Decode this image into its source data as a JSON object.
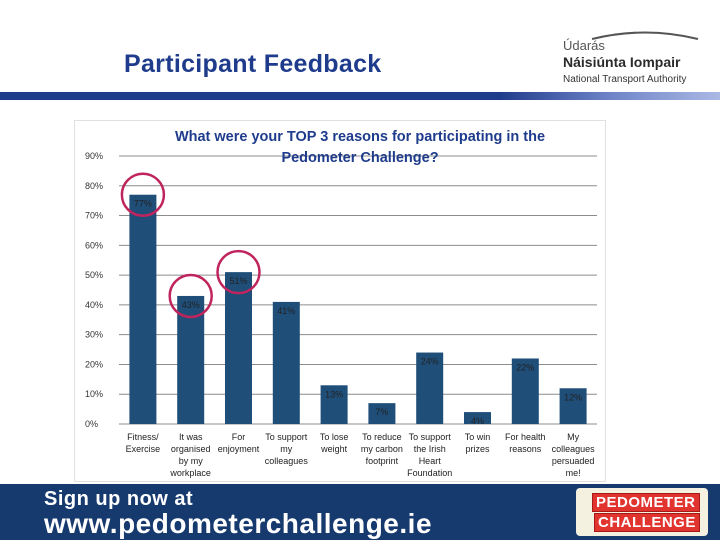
{
  "slide_title": "Participant Feedback",
  "logo": {
    "line1": "Údarás",
    "line2": "Náisiúnta Iompair",
    "line3": "National Transport Authority",
    "icon": "bridge-arc-icon"
  },
  "banner": {
    "line1": "Sign up now at",
    "line2": "www.pedometerchallenge.ie",
    "logo_line1": "PEDOMETER",
    "logo_line2": "CHALLENGE"
  },
  "colors": {
    "bar": "#1f4e79",
    "highlight_circle": "#c0245c",
    "title": "#1f3c8c",
    "banner": "#16396e"
  },
  "chart_data": {
    "type": "bar",
    "title": "What were your TOP 3 reasons for participating in the Pedometer Challenge?",
    "categories": [
      [
        "Fitness/",
        "Exercise"
      ],
      [
        "It was",
        "organised",
        "by my",
        "workplace"
      ],
      [
        "For",
        "enjoyment"
      ],
      [
        "To support",
        "my",
        "colleagues"
      ],
      [
        "To lose",
        "weight"
      ],
      [
        "To reduce",
        "my carbon",
        "footprint"
      ],
      [
        "To support",
        "the Irish",
        "Heart",
        "Foundation"
      ],
      [
        "To win",
        "prizes"
      ],
      [
        "For health",
        "reasons"
      ],
      [
        "My",
        "colleagues",
        "persuaded",
        "me!"
      ]
    ],
    "values": [
      77,
      43,
      51,
      41,
      13,
      7,
      24,
      4,
      22,
      12
    ],
    "data_labels": [
      "77%",
      "43%",
      "51%",
      "41%",
      "13%",
      "7%",
      "24%",
      "4%",
      "22%",
      "12%"
    ],
    "y_ticks": [
      0,
      10,
      20,
      30,
      40,
      50,
      60,
      70,
      80,
      90
    ],
    "y_tick_labels": [
      "0%",
      "10%",
      "20%",
      "30%",
      "40%",
      "50%",
      "60%",
      "70%",
      "80%",
      "90%"
    ],
    "ylim": [
      0,
      90
    ],
    "grid": true,
    "legend": "none",
    "highlighted": [
      0,
      1,
      2
    ]
  }
}
